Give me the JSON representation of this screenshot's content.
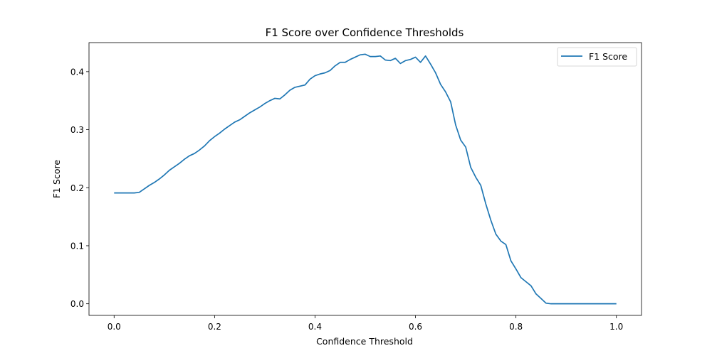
{
  "chart_data": {
    "type": "line",
    "title": "F1 Score over Confidence Thresholds",
    "xlabel": "Confidence Threshold",
    "ylabel": "F1 Score",
    "xlim": [
      -0.05,
      1.05
    ],
    "ylim": [
      -0.02,
      0.45
    ],
    "xticks": [
      0.0,
      0.2,
      0.4,
      0.6,
      0.8,
      1.0
    ],
    "xtick_labels": [
      "0.0",
      "0.2",
      "0.4",
      "0.6",
      "0.8",
      "1.0"
    ],
    "yticks": [
      0.0,
      0.1,
      0.2,
      0.3,
      0.4
    ],
    "ytick_labels": [
      "0.0",
      "0.1",
      "0.2",
      "0.3",
      "0.4"
    ],
    "grid": false,
    "legend": {
      "position": "top-right"
    },
    "series": [
      {
        "name": "F1 Score",
        "color": "#1f77b4",
        "x": [
          0.0,
          0.01,
          0.02,
          0.03,
          0.04,
          0.05,
          0.06,
          0.07,
          0.08,
          0.09,
          0.1,
          0.11,
          0.12,
          0.13,
          0.14,
          0.15,
          0.16,
          0.17,
          0.18,
          0.19,
          0.2,
          0.21,
          0.22,
          0.23,
          0.24,
          0.25,
          0.26,
          0.27,
          0.28,
          0.29,
          0.3,
          0.31,
          0.32,
          0.33,
          0.34,
          0.35,
          0.36,
          0.37,
          0.38,
          0.39,
          0.4,
          0.41,
          0.42,
          0.43,
          0.44,
          0.45,
          0.46,
          0.47,
          0.48,
          0.49,
          0.5,
          0.51,
          0.52,
          0.53,
          0.54,
          0.55,
          0.56,
          0.57,
          0.58,
          0.59,
          0.6,
          0.61,
          0.62,
          0.63,
          0.64,
          0.65,
          0.66,
          0.67,
          0.68,
          0.69,
          0.7,
          0.71,
          0.72,
          0.73,
          0.74,
          0.75,
          0.76,
          0.77,
          0.78,
          0.79,
          0.8,
          0.81,
          0.82,
          0.83,
          0.84,
          0.85,
          0.86,
          0.87,
          0.88,
          0.89,
          0.9,
          0.91,
          0.92,
          0.93,
          0.94,
          0.95,
          0.96,
          0.97,
          0.98,
          0.99,
          1.0
        ],
        "y": [
          0.191,
          0.191,
          0.191,
          0.191,
          0.191,
          0.192,
          0.198,
          0.204,
          0.209,
          0.215,
          0.222,
          0.23,
          0.236,
          0.242,
          0.249,
          0.255,
          0.259,
          0.265,
          0.272,
          0.281,
          0.288,
          0.294,
          0.301,
          0.307,
          0.313,
          0.317,
          0.323,
          0.329,
          0.334,
          0.339,
          0.345,
          0.35,
          0.354,
          0.353,
          0.36,
          0.368,
          0.373,
          0.375,
          0.377,
          0.387,
          0.393,
          0.396,
          0.398,
          0.402,
          0.41,
          0.416,
          0.416,
          0.421,
          0.425,
          0.429,
          0.43,
          0.426,
          0.426,
          0.427,
          0.42,
          0.419,
          0.423,
          0.414,
          0.419,
          0.421,
          0.425,
          0.416,
          0.427,
          0.413,
          0.398,
          0.378,
          0.365,
          0.348,
          0.308,
          0.282,
          0.27,
          0.235,
          0.218,
          0.204,
          0.172,
          0.144,
          0.12,
          0.108,
          0.102,
          0.074,
          0.06,
          0.045,
          0.038,
          0.031,
          0.017,
          0.009,
          0.001,
          0.0,
          0.0,
          0.0,
          0.0,
          0.0,
          0.0,
          0.0,
          0.0,
          0.0,
          0.0,
          0.0,
          0.0,
          0.0,
          0.0
        ]
      }
    ]
  }
}
